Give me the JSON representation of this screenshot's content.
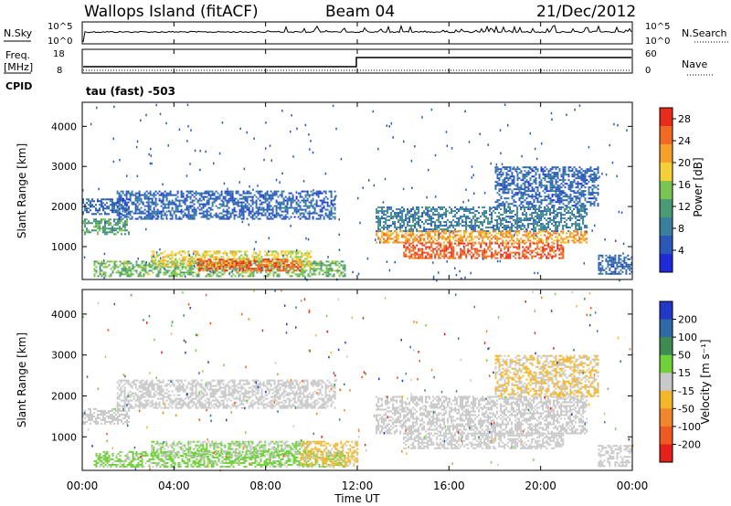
{
  "header": {
    "station": "Wallops Island (fitACF)",
    "beam": "Beam 04",
    "date": "21/Dec/2012"
  },
  "noise_panel": {
    "left_label": "N.Sky",
    "right_label": "N.Search",
    "left_ticks": [
      "10^5",
      "10^0"
    ],
    "right_ticks": [
      "10^5",
      "10^0"
    ]
  },
  "freq_panel": {
    "left_label_1": "Freq.",
    "left_label_2": "[MHz]",
    "right_label": "Nave",
    "left_ticks": [
      "18",
      "8"
    ],
    "right_ticks": [
      "60",
      "0"
    ],
    "cpid_label": "CPID",
    "cpid_value": "tau (fast) -503"
  },
  "colors": {
    "power": [
      "#1f2bd6",
      "#2a58b8",
      "#3a7f9c",
      "#4a9a74",
      "#7ac452",
      "#f5d038",
      "#f5a02a",
      "#f06a22",
      "#e82c1c"
    ],
    "velocity": [
      "#2238c8",
      "#2e6aa8",
      "#3f8b52",
      "#6fd03a",
      "#c9c9c9",
      "#f3b82a",
      "#f2862a",
      "#ef5a22",
      "#e52218"
    ]
  },
  "chart_data": [
    {
      "type": "heatmap",
      "title": "",
      "xlabel": "",
      "ylabel": "Slant Range [km]",
      "x_ticks": [
        "00:00",
        "04:00",
        "08:00",
        "12:00",
        "16:00",
        "20:00",
        "00:00"
      ],
      "y_ticks": [
        1000,
        2000,
        3000,
        4000
      ],
      "ylim": [
        180,
        4600
      ],
      "colorbar": {
        "label": "Power [dB]",
        "ticks": [
          4,
          8,
          12,
          16,
          20,
          24,
          28
        ],
        "range": [
          0,
          30
        ]
      },
      "regions": [
        {
          "t": [
            0.0,
            2.0
          ],
          "r": [
            1300,
            1700
          ],
          "value": 12
        },
        {
          "t": [
            0.0,
            2.0
          ],
          "r": [
            1800,
            2200
          ],
          "value": 6
        },
        {
          "t": [
            0.5,
            11.5
          ],
          "r": [
            250,
            650
          ],
          "value": 14
        },
        {
          "t": [
            3.0,
            10.0
          ],
          "r": [
            500,
            900
          ],
          "value": 18
        },
        {
          "t": [
            5.0,
            9.5
          ],
          "r": [
            400,
            700
          ],
          "value": 26
        },
        {
          "t": [
            1.5,
            11.0
          ],
          "r": [
            1700,
            2400
          ],
          "value": 6
        },
        {
          "t": [
            12.8,
            22.0
          ],
          "r": [
            1400,
            2000
          ],
          "value": 8
        },
        {
          "t": [
            12.8,
            22.0
          ],
          "r": [
            1100,
            1400
          ],
          "value": 22
        },
        {
          "t": [
            14.0,
            21.0
          ],
          "r": [
            700,
            1100
          ],
          "value": 26
        },
        {
          "t": [
            18.0,
            22.5
          ],
          "r": [
            2000,
            3000
          ],
          "value": 6
        },
        {
          "t": [
            22.5,
            24.0
          ],
          "r": [
            300,
            800
          ],
          "value": 6
        }
      ]
    },
    {
      "type": "heatmap",
      "title": "",
      "xlabel": "Time UT",
      "ylabel": "Slant Range [km]",
      "x_ticks": [
        "00:00",
        "04:00",
        "08:00",
        "12:00",
        "16:00",
        "20:00",
        "00:00"
      ],
      "y_ticks": [
        1000,
        2000,
        3000,
        4000
      ],
      "ylim": [
        180,
        4600
      ],
      "colorbar": {
        "label": "Velocity [m s⁻¹]",
        "ticks": [
          200,
          100,
          50,
          15,
          -15,
          -50,
          -100,
          -200
        ],
        "range": [
          -250,
          250
        ]
      },
      "regions": [
        {
          "t": [
            0.0,
            2.0
          ],
          "r": [
            1300,
            1700
          ],
          "value": 0
        },
        {
          "t": [
            0.5,
            11.5
          ],
          "r": [
            250,
            650
          ],
          "value": 40
        },
        {
          "t": [
            3.0,
            10.0
          ],
          "r": [
            500,
            900
          ],
          "value": 30
        },
        {
          "t": [
            9.5,
            12.0
          ],
          "r": [
            300,
            900
          ],
          "value": -40
        },
        {
          "t": [
            1.5,
            11.0
          ],
          "r": [
            1700,
            2400
          ],
          "value": 0
        },
        {
          "t": [
            12.8,
            22.0
          ],
          "r": [
            1100,
            2000
          ],
          "value": 0
        },
        {
          "t": [
            14.0,
            21.0
          ],
          "r": [
            700,
            1100
          ],
          "value": 0
        },
        {
          "t": [
            18.0,
            22.5
          ],
          "r": [
            2000,
            3000
          ],
          "value": -30
        },
        {
          "t": [
            22.5,
            24.0
          ],
          "r": [
            300,
            800
          ],
          "value": 0
        }
      ]
    }
  ]
}
